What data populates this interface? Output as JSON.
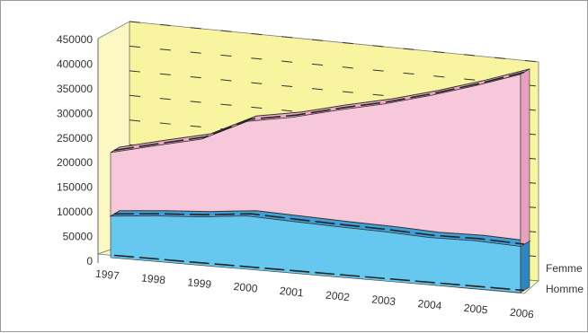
{
  "chart_data": {
    "type": "area",
    "style": "3d-stacked",
    "categories": [
      "1997",
      "1998",
      "1999",
      "2000",
      "2001",
      "2002",
      "2003",
      "2004",
      "2005",
      "2006"
    ],
    "series": [
      {
        "name": "Homme",
        "values": [
          105000,
          110000,
          112000,
          118000,
          110000,
          103000,
          97000,
          90000,
          88000,
          82000
        ]
      },
      {
        "name": "Femme",
        "values": [
          161000,
          170000,
          180000,
          210000,
          222000,
          239000,
          252000,
          270000,
          285000,
          306000
        ]
      }
    ],
    "yticks": [
      "0",
      "50000",
      "100000",
      "150000",
      "200000",
      "250000",
      "300000",
      "350000",
      "400000",
      "450000"
    ],
    "ylim": [
      0,
      450000
    ],
    "grid": true,
    "legend": "right",
    "colors": {
      "homme": "#66c8ee",
      "femme": "#f7c8da",
      "wall": "#f8f4a0",
      "line": "#333333"
    }
  }
}
